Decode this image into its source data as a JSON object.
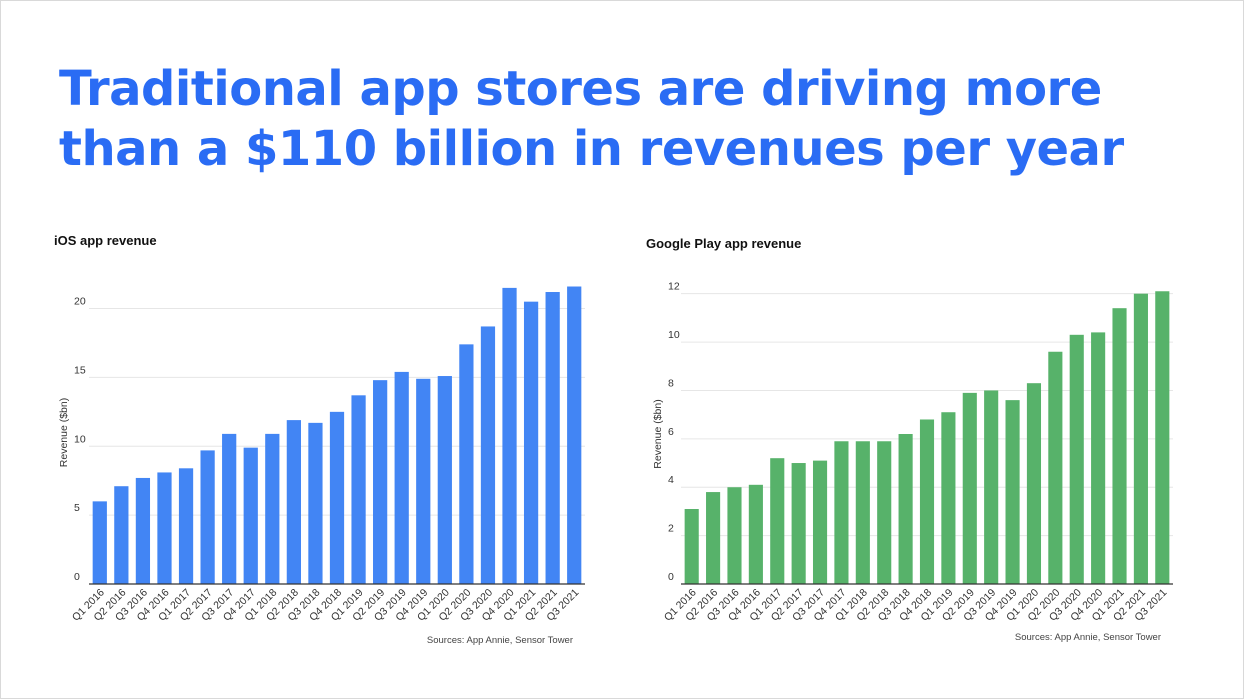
{
  "headline": {
    "line1": "Traditional app stores are driving more",
    "line2": "than a $110 billion in revenues per year"
  },
  "chart_data": [
    {
      "type": "bar",
      "title": "iOS app revenue",
      "ylabel": "Revenue ($bn)",
      "xlabel": "",
      "color": "#4285f4",
      "categories": [
        "Q1 2016",
        "Q2 2016",
        "Q3 2016",
        "Q4 2016",
        "Q1 2017",
        "Q2 2017",
        "Q3 2017",
        "Q4 2017",
        "Q1 2018",
        "Q2 2018",
        "Q3 2018",
        "Q4 2018",
        "Q1 2019",
        "Q2 2019",
        "Q3 2019",
        "Q4 2019",
        "Q1 2020",
        "Q2 2020",
        "Q3 2020",
        "Q4 2020",
        "Q1 2021",
        "Q2 2021",
        "Q3 2021"
      ],
      "values": [
        6.0,
        7.1,
        7.7,
        8.1,
        8.4,
        9.7,
        10.9,
        9.9,
        10.9,
        11.9,
        11.7,
        12.5,
        13.7,
        14.8,
        15.4,
        14.9,
        15.1,
        17.4,
        18.7,
        21.5,
        20.5,
        21.2,
        21.6
      ],
      "ylim": [
        0,
        22
      ],
      "yticks": [
        0,
        5,
        10,
        15,
        20
      ],
      "grid": true,
      "source": "Sources: App Annie, Sensor Tower"
    },
    {
      "type": "bar",
      "title": "Google Play app revenue",
      "ylabel": "Revenue ($bn)",
      "xlabel": "",
      "color": "#57b26a",
      "categories": [
        "Q1 2016",
        "Q2 2016",
        "Q3 2016",
        "Q4 2016",
        "Q1 2017",
        "Q2 2017",
        "Q3 2017",
        "Q4 2017",
        "Q1 2018",
        "Q2 2018",
        "Q3 2018",
        "Q4 2018",
        "Q1 2019",
        "Q2 2019",
        "Q3 2019",
        "Q4 2019",
        "Q1 2020",
        "Q2 2020",
        "Q3 2020",
        "Q4 2020",
        "Q1 2021",
        "Q2 2021",
        "Q3 2021"
      ],
      "values": [
        3.1,
        3.8,
        4.0,
        4.1,
        5.2,
        5.0,
        5.1,
        5.9,
        5.9,
        5.9,
        6.2,
        6.8,
        7.1,
        7.9,
        8.0,
        7.6,
        8.3,
        9.6,
        10.3,
        10.4,
        11.4,
        12.0,
        12.1
      ],
      "ylim": [
        0,
        12.4
      ],
      "yticks": [
        0,
        2,
        4,
        6,
        8,
        10,
        12
      ],
      "grid": true,
      "source": "Sources: App Annie, Sensor Tower"
    }
  ]
}
